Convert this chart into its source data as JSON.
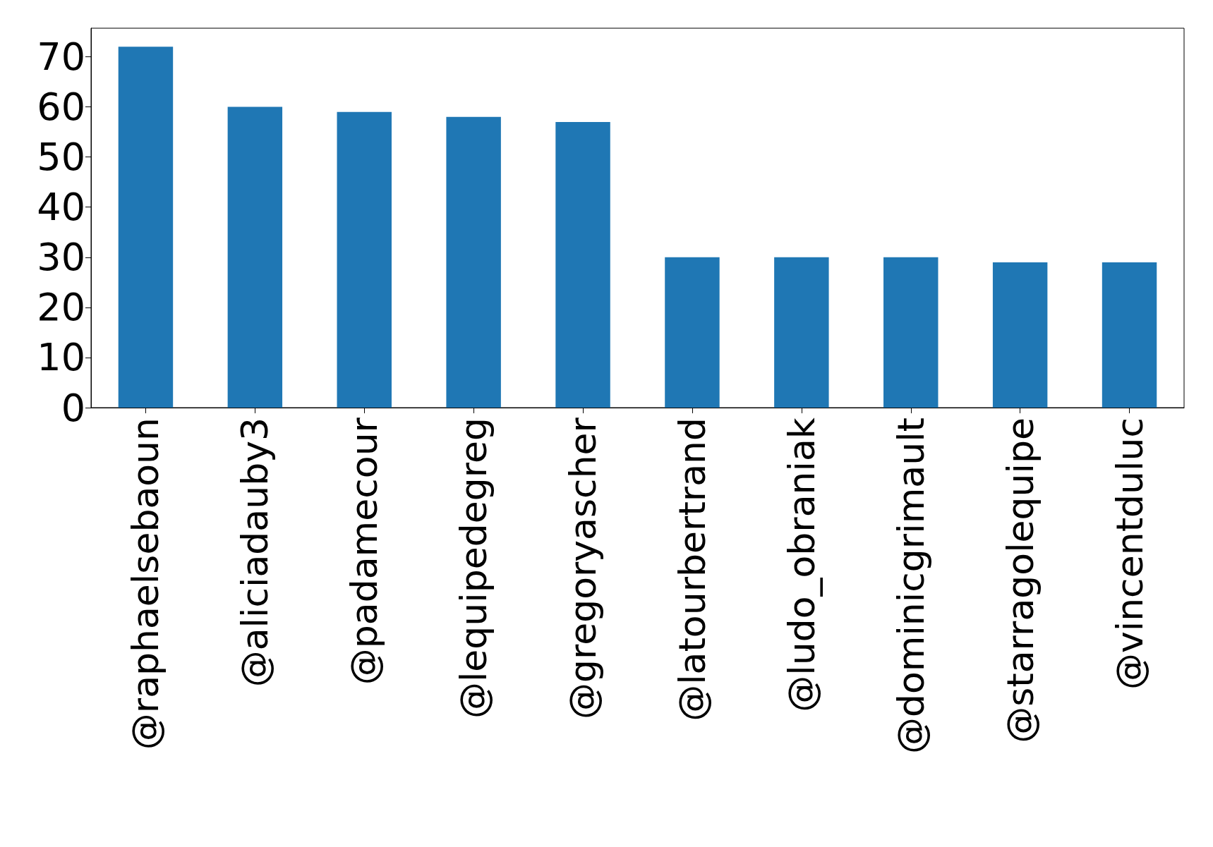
{
  "chart_data": {
    "type": "bar",
    "categories": [
      "@raphaelsebaoun",
      "@aliciadauby3",
      "@padamecour",
      "@lequipedegreg",
      "@gregoryascher",
      "@latourbertrand",
      "@ludo_obraniak",
      "@dominicgrimault",
      "@starragolequipe",
      "@vincentduluc"
    ],
    "values": [
      72,
      60,
      59,
      58,
      57,
      30,
      30,
      30,
      29,
      29
    ],
    "color": "#1f77b4",
    "ylim": [
      0,
      75.7
    ],
    "yticks": [
      0,
      10,
      20,
      30,
      40,
      50,
      60,
      70
    ],
    "grid": false
  }
}
